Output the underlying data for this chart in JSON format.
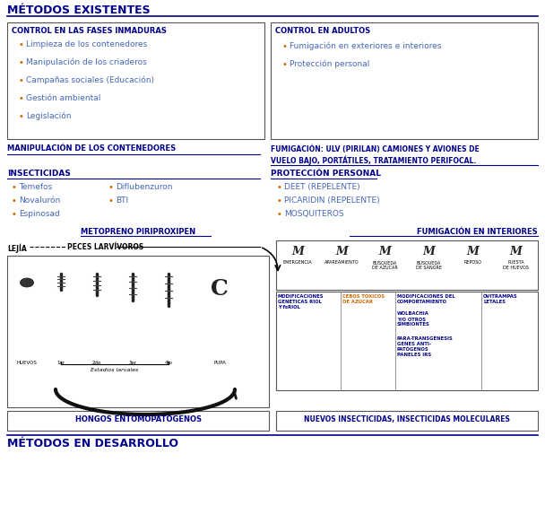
{
  "bg": "#ffffff",
  "blue": "#00008B",
  "blue_text": "#4466bb",
  "orange": "#cc6600",
  "title_existentes": "MÉTODOS EXISTENTES",
  "title_desarrollo": "MÉTODOS EN DESARROLLO",
  "box1_title": "CONTROL EN LAS FASES INMADURAS",
  "box1_items": [
    "Limpieza de los contenedores",
    "Manipulación de los criaderos",
    "Campañas sociales (Educación)",
    "Gestión ambiental",
    "Legislación"
  ],
  "box2_title": "CONTROL EN ADULTOS",
  "box2_items": [
    "Fumigación en exteriores e interiores",
    "Protección personal"
  ],
  "lbl_manip": "MANIPULACIÓN DE LOS CONTENEDORES",
  "lbl_fumig_ulv": "FUMIGACIÓN: ULV (PIRILAN) CAMIONES Y AVIONES DE\nVUELO BAJO, PORTÁTILES, TRATAMIENTO PERIFOCAL.",
  "lbl_insect": "INSECTICIDAS",
  "lbl_prot": "PROTECCIÓN PERSONAL",
  "insect_c1": [
    "Temefos",
    "Novalurón",
    "Espinosad"
  ],
  "insect_c2": [
    "Diflubenzuron",
    "BTI"
  ],
  "prot_items": [
    "DEET (REPELENTE)",
    "PICARIDIN (REPELENTE)",
    "MOSQUITEROS"
  ],
  "lbl_metop": "METOPRENO PIRIPROXIPEN",
  "lbl_fumig_int": "FUMIGACIÓN EN INTERIORES",
  "lbl_lejia": "LEJÍA",
  "lbl_peces": "PECES LARVÍVOROS",
  "larval_labels": [
    "HUEVOS",
    "1er",
    "2do",
    "3er",
    "4to",
    "PUPA"
  ],
  "lbl_estadios": "Estadios larvales",
  "stages": [
    "EMERGENCIA",
    "APAREAMIENTO",
    "BÚSQUEDA\nDE AZÚCAR",
    "BÚSQUEDA\nDE SANGRE",
    "REPOSO",
    "PUESTA\nDE HUEVOS"
  ],
  "cell1": "MODIFICACIONES\nGENÉTICAS RIOL\nY fsRIOL",
  "cell2": "CEBOS TÓXICOS\nDE AZÚCAR",
  "cell3_1": "MODIFICACIONES DEL\nCOMPORTAMIENTO",
  "cell3_2": "WOLBACHIA\nY/O OTROS\nSIMBIONTES",
  "cell3_3": "PARA-TRANSGÉNESIS\nGENES ANTI-\nPATÓGENOS\nPANELES IRS",
  "cell4": "OVITRAMPAS\nLETALES",
  "lbl_hongos": "HONGOS ENTOMOPATÓGENOS",
  "lbl_nuevos": "NUEVOS INSECTICIDAS, INSECTICIDAS MOLECULARES"
}
